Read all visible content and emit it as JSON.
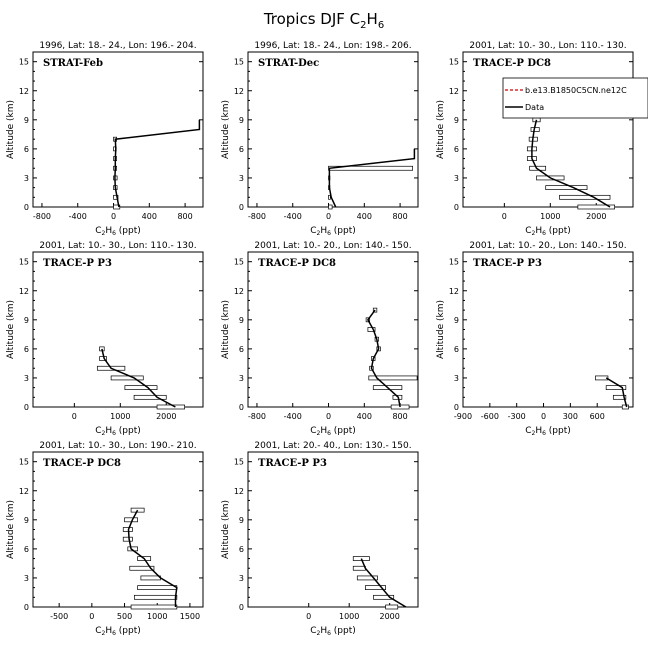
{
  "page": {
    "title_main": "Tropics DJF C",
    "title_sub": "2",
    "title_end": "H",
    "title_sub2": "6"
  },
  "axis_text": {
    "ylabel": "Altitude (km)",
    "xlabel_c": "C",
    "xlabel_sub1": "2",
    "xlabel_h": "H",
    "xlabel_sub2": "6",
    "xlabel_unit": " (ppt)"
  },
  "legend": {
    "model": "b.e13.B1850C5CN.ne12C",
    "data": "Data"
  },
  "chart_data": [
    {
      "type": "line",
      "title": "1996, Lat: 18.- 24., Lon: 196.- 204.",
      "campaign": "STRAT-Feb",
      "xlim": [
        -900,
        1000
      ],
      "xticks": [
        -800,
        -400,
        0,
        400,
        800
      ],
      "ylim": [
        0,
        16
      ],
      "yticks": [
        0,
        3,
        6,
        9,
        12,
        15
      ],
      "points": [
        [
          60,
          0
        ],
        [
          40,
          1
        ],
        [
          20,
          2
        ],
        [
          15,
          3
        ],
        [
          20,
          4
        ],
        [
          20,
          5
        ],
        [
          25,
          6
        ],
        [
          20,
          7
        ],
        [
          960,
          8
        ],
        [
          960,
          9
        ]
      ],
      "bars": [
        [
          0,
          70
        ],
        [
          0,
          50
        ],
        [
          0,
          40
        ],
        [
          0,
          40
        ],
        [
          0,
          35
        ],
        [
          0,
          35
        ],
        [
          0,
          30
        ],
        [
          0,
          35
        ]
      ]
    },
    {
      "type": "line",
      "title": "1996, Lat: 18.- 24., Lon: 198.- 206.",
      "campaign": "STRAT-Dec",
      "xlim": [
        -900,
        1000
      ],
      "xticks": [
        -800,
        -400,
        0,
        400,
        800
      ],
      "ylim": [
        0,
        16
      ],
      "yticks": [
        0,
        3,
        6,
        9,
        12,
        15
      ],
      "points": [
        [
          80,
          0
        ],
        [
          30,
          1
        ],
        [
          10,
          2
        ],
        [
          10,
          3
        ],
        [
          10,
          4
        ],
        [
          960,
          5
        ],
        [
          960,
          6
        ]
      ],
      "bars": [
        [
          0,
          40
        ],
        [
          0,
          20
        ],
        [
          0,
          15
        ],
        [
          0,
          15
        ],
        [
          0,
          940
        ]
      ]
    },
    {
      "type": "line",
      "title": "2001, Lat: 10.- 30., Lon: 110.- 130.",
      "campaign": "TRACE-P DC8",
      "xlim": [
        -900,
        2800
      ],
      "xticks": [
        0,
        1000,
        2000
      ],
      "ylim": [
        0,
        16
      ],
      "yticks": [
        0,
        3,
        6,
        9,
        12,
        15
      ],
      "points": [
        [
          2300,
          0
        ],
        [
          1950,
          1
        ],
        [
          1500,
          2
        ],
        [
          1000,
          3
        ],
        [
          700,
          4
        ],
        [
          600,
          5
        ],
        [
          600,
          6
        ],
        [
          620,
          7
        ],
        [
          650,
          8
        ],
        [
          700,
          9
        ]
      ],
      "bars": [
        [
          1600,
          2400
        ],
        [
          1200,
          2300
        ],
        [
          900,
          1800
        ],
        [
          700,
          1300
        ],
        [
          550,
          900
        ],
        [
          500,
          700
        ],
        [
          500,
          700
        ],
        [
          540,
          720
        ],
        [
          580,
          760
        ],
        [
          620,
          780
        ]
      ],
      "legend": true
    },
    {
      "type": "line",
      "title": "2001, Lat: 10.- 30., Lon: 110.- 130.",
      "campaign": "TRACE-P P3",
      "xlim": [
        -900,
        2800
      ],
      "xticks": [
        0,
        1000,
        2000
      ],
      "ylim": [
        0,
        16
      ],
      "yticks": [
        0,
        3,
        6,
        9,
        12,
        15
      ],
      "points": [
        [
          2200,
          0
        ],
        [
          1800,
          1
        ],
        [
          1600,
          2
        ],
        [
          1300,
          3
        ],
        [
          800,
          4
        ],
        [
          650,
          5
        ],
        [
          600,
          6
        ]
      ],
      "bars": [
        [
          1800,
          2400
        ],
        [
          1300,
          2000
        ],
        [
          1100,
          1800
        ],
        [
          800,
          1500
        ],
        [
          500,
          1100
        ],
        [
          550,
          700
        ],
        [
          550,
          650
        ]
      ]
    },
    {
      "type": "line",
      "title": "2001, Lat: 10.- 20., Lon: 140.- 150.",
      "campaign": "TRACE-P DC8",
      "xlim": [
        -900,
        1000
      ],
      "xticks": [
        -800,
        -400,
        0,
        400,
        800
      ],
      "ylim": [
        0,
        16
      ],
      "yticks": [
        0,
        3,
        6,
        9,
        12,
        15
      ],
      "points": [
        [
          800,
          0
        ],
        [
          780,
          1
        ],
        [
          660,
          2
        ],
        [
          540,
          3
        ],
        [
          480,
          4
        ],
        [
          500,
          5
        ],
        [
          560,
          6
        ],
        [
          540,
          7
        ],
        [
          500,
          8
        ],
        [
          440,
          9
        ],
        [
          520,
          10
        ]
      ],
      "bars": [
        [
          700,
          900
        ],
        [
          720,
          820
        ],
        [
          500,
          820
        ],
        [
          450,
          990
        ],
        [
          460,
          500
        ],
        [
          480,
          520
        ],
        [
          540,
          580
        ],
        [
          520,
          560
        ],
        [
          440,
          520
        ],
        [
          420,
          460
        ],
        [
          500,
          540
        ]
      ]
    },
    {
      "type": "line",
      "title": "2001, Lat: 10.- 20., Lon: 140.- 150.",
      "campaign": "TRACE-P P3",
      "xlim": [
        -900,
        1000
      ],
      "xticks": [
        -900,
        -600,
        -300,
        0,
        300,
        600
      ],
      "ylim": [
        0,
        16
      ],
      "yticks": [
        0,
        3,
        6,
        9,
        12,
        15
      ],
      "points": [
        [
          930,
          0
        ],
        [
          900,
          1
        ],
        [
          880,
          2
        ],
        [
          700,
          3
        ]
      ],
      "bars": [
        [
          880,
          950
        ],
        [
          780,
          920
        ],
        [
          700,
          920
        ],
        [
          580,
          720
        ]
      ]
    },
    {
      "type": "line",
      "title": "2001, Lat: 10.- 30., Lon: 190.- 210.",
      "campaign": "TRACE-P DC8",
      "xlim": [
        -900,
        1700
      ],
      "xticks": [
        -500,
        0,
        500,
        1000,
        1500
      ],
      "ylim": [
        0,
        16
      ],
      "yticks": [
        0,
        3,
        6,
        9,
        12,
        15
      ],
      "points": [
        [
          1280,
          0
        ],
        [
          1280,
          1
        ],
        [
          1300,
          2
        ],
        [
          1050,
          3
        ],
        [
          900,
          4
        ],
        [
          800,
          5
        ],
        [
          600,
          6
        ],
        [
          570,
          7
        ],
        [
          560,
          8
        ],
        [
          620,
          9
        ],
        [
          700,
          10
        ]
      ],
      "bars": [
        [
          600,
          1300
        ],
        [
          650,
          1300
        ],
        [
          700,
          1300
        ],
        [
          750,
          1050
        ],
        [
          580,
          950
        ],
        [
          700,
          900
        ],
        [
          550,
          700
        ],
        [
          480,
          620
        ],
        [
          480,
          620
        ],
        [
          500,
          700
        ],
        [
          600,
          800
        ]
      ]
    },
    {
      "type": "line",
      "title": "2001, Lat: 20.- 40., Lon: 130.- 150.",
      "campaign": "TRACE-P P3",
      "xlim": [
        -1500,
        2700
      ],
      "xticks": [
        0,
        1000,
        2000
      ],
      "ylim": [
        0,
        16
      ],
      "yticks": [
        0,
        3,
        6,
        9,
        12,
        15
      ],
      "points": [
        [
          2400,
          0
        ],
        [
          2000,
          1
        ],
        [
          1800,
          2
        ],
        [
          1600,
          3
        ],
        [
          1400,
          4
        ],
        [
          1300,
          5
        ]
      ],
      "bars": [
        [
          1900,
          2200
        ],
        [
          1600,
          2100
        ],
        [
          1400,
          1900
        ],
        [
          1200,
          1700
        ],
        [
          1100,
          1400
        ],
        [
          1100,
          1500
        ]
      ]
    }
  ]
}
